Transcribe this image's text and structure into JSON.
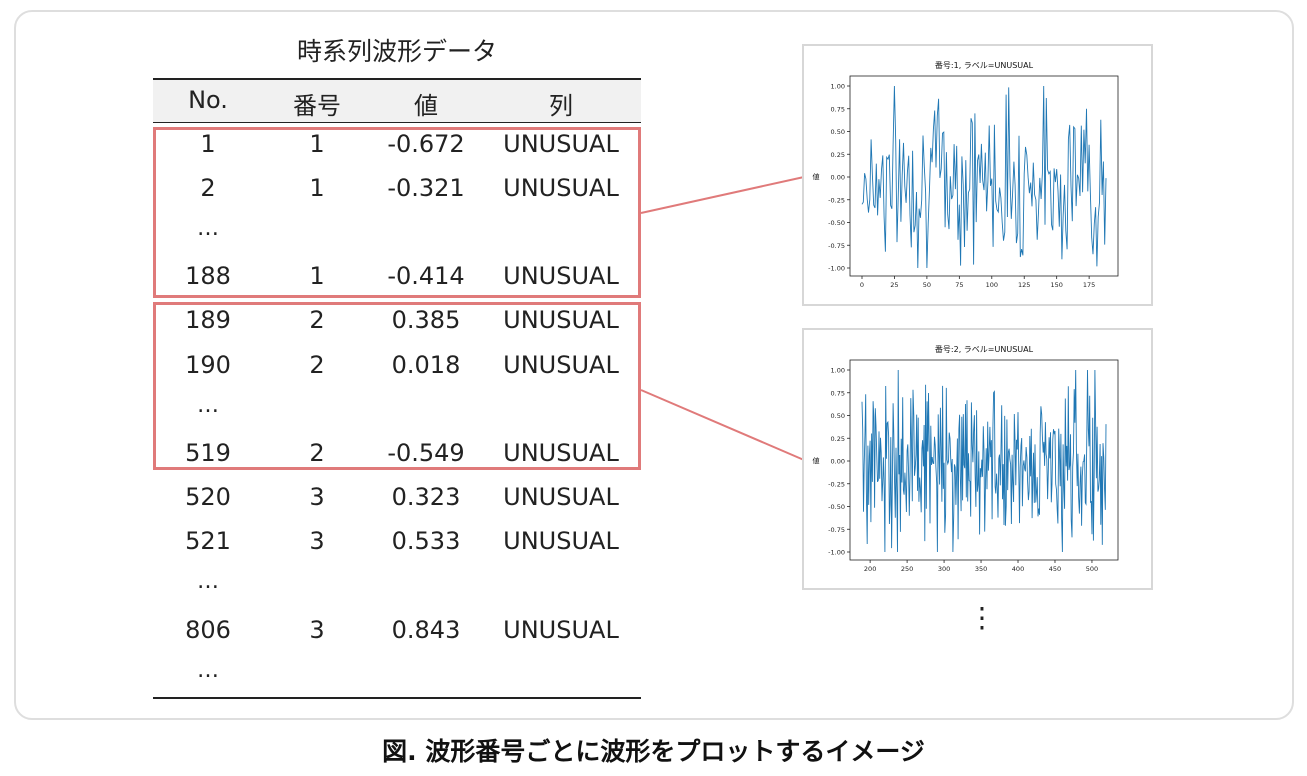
{
  "table": {
    "title": "時系列波形データ",
    "headers": [
      "No.",
      "番号",
      "値",
      "列"
    ],
    "rows": [
      {
        "no": "1",
        "id": "1",
        "value": "-0.672",
        "label": "UNUSUAL"
      },
      {
        "no": "2",
        "id": "1",
        "value": "-0.321",
        "label": "UNUSUAL"
      },
      {
        "ellipsis": "…"
      },
      {
        "no": "188",
        "id": "1",
        "value": "-0.414",
        "label": "UNUSUAL"
      },
      {
        "no": "189",
        "id": "2",
        "value": "0.385",
        "label": "UNUSUAL"
      },
      {
        "no": "190",
        "id": "2",
        "value": "0.018",
        "label": "UNUSUAL"
      },
      {
        "ellipsis": "…"
      },
      {
        "no": "519",
        "id": "2",
        "value": "-0.549",
        "label": "UNUSUAL"
      },
      {
        "no": "520",
        "id": "3",
        "value": "0.323",
        "label": "UNUSUAL"
      },
      {
        "no": "521",
        "id": "3",
        "value": "0.533",
        "label": "UNUSUAL"
      },
      {
        "ellipsis": "…"
      },
      {
        "no": "806",
        "id": "3",
        "value": "0.843",
        "label": "UNUSUAL"
      },
      {
        "ellipsis": "…"
      }
    ]
  },
  "plots": [
    {
      "title": "番号:1,  ラベル=UNUSUAL",
      "ylabel": "値",
      "x_range": [
        0,
        188
      ],
      "y_range": [
        -1.0,
        1.0
      ],
      "xticks": [
        "0",
        "25",
        "50",
        "75",
        "100",
        "125",
        "150",
        "175"
      ],
      "yticks": [
        "1.00",
        "0.75",
        "0.50",
        "0.25",
        "0.00",
        "-0.25",
        "-0.50",
        "-0.75",
        "-1.00"
      ],
      "seed": 7
    },
    {
      "title": "番号:2,  ラベル=UNUSUAL",
      "ylabel": "値",
      "x_range": [
        189,
        519
      ],
      "y_range": [
        -1.0,
        1.0
      ],
      "xticks": [
        "200",
        "250",
        "300",
        "350",
        "400",
        "450",
        "500"
      ],
      "yticks": [
        "1.00",
        "0.75",
        "0.50",
        "0.25",
        "0.00",
        "-0.25",
        "-0.50",
        "-0.75",
        "-1.00"
      ],
      "seed": 19
    }
  ],
  "more_indicator": "⋮",
  "caption": "図. 波形番号ごとに波形をプロットするイメージ",
  "colors": {
    "group_border": "#e07a7a",
    "connector": "#e07a7a",
    "line": "#1f77b4"
  }
}
